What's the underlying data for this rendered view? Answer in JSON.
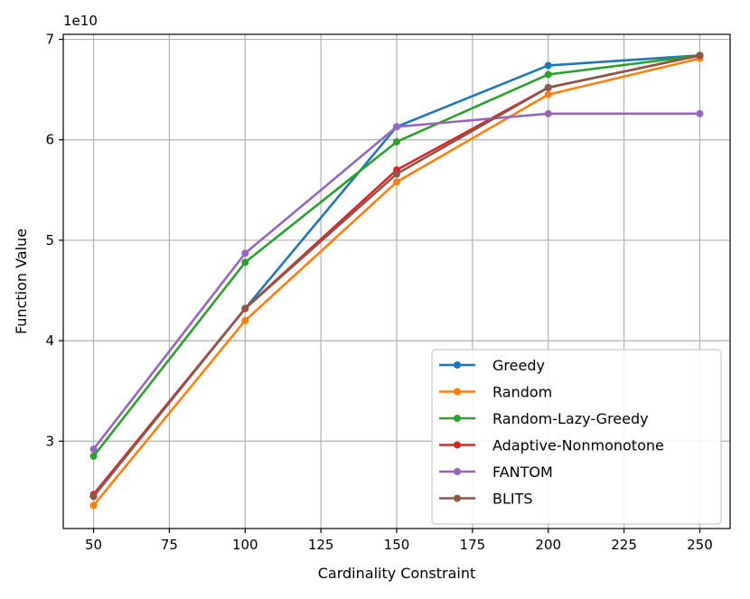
{
  "chart_data": {
    "type": "line",
    "x": [
      50,
      100,
      150,
      200,
      250
    ],
    "xlabel": "Cardinality Constraint",
    "ylabel": "Function Value",
    "y_offset_label": "1e10",
    "xlim": [
      40,
      260
    ],
    "ylim": [
      2.13,
      7.05
    ],
    "xticks": [
      50,
      75,
      100,
      125,
      150,
      175,
      200,
      225,
      250
    ],
    "yticks": [
      3,
      4,
      5,
      6,
      7
    ],
    "grid": true,
    "legend_position": "lower-right",
    "series": [
      {
        "name": "Greedy",
        "color": "#1f77b4",
        "values": [
          2.45,
          4.32,
          6.13,
          6.74,
          6.84
        ]
      },
      {
        "name": "Random",
        "color": "#ff7f0e",
        "values": [
          2.36,
          4.2,
          5.58,
          6.45,
          6.81
        ]
      },
      {
        "name": "Random-Lazy-Greedy",
        "color": "#2ca02c",
        "values": [
          2.85,
          4.78,
          5.98,
          6.65,
          6.84
        ]
      },
      {
        "name": "Adaptive-Nonmonotone",
        "color": "#d62728",
        "values": [
          2.47,
          4.32,
          5.7,
          6.52,
          6.84
        ]
      },
      {
        "name": "FANTOM",
        "color": "#9467bd",
        "values": [
          2.92,
          4.87,
          6.13,
          6.26,
          6.26
        ]
      },
      {
        "name": "BLITS",
        "color": "#8c564b",
        "values": [
          2.45,
          4.32,
          5.66,
          6.52,
          6.84
        ]
      }
    ]
  }
}
